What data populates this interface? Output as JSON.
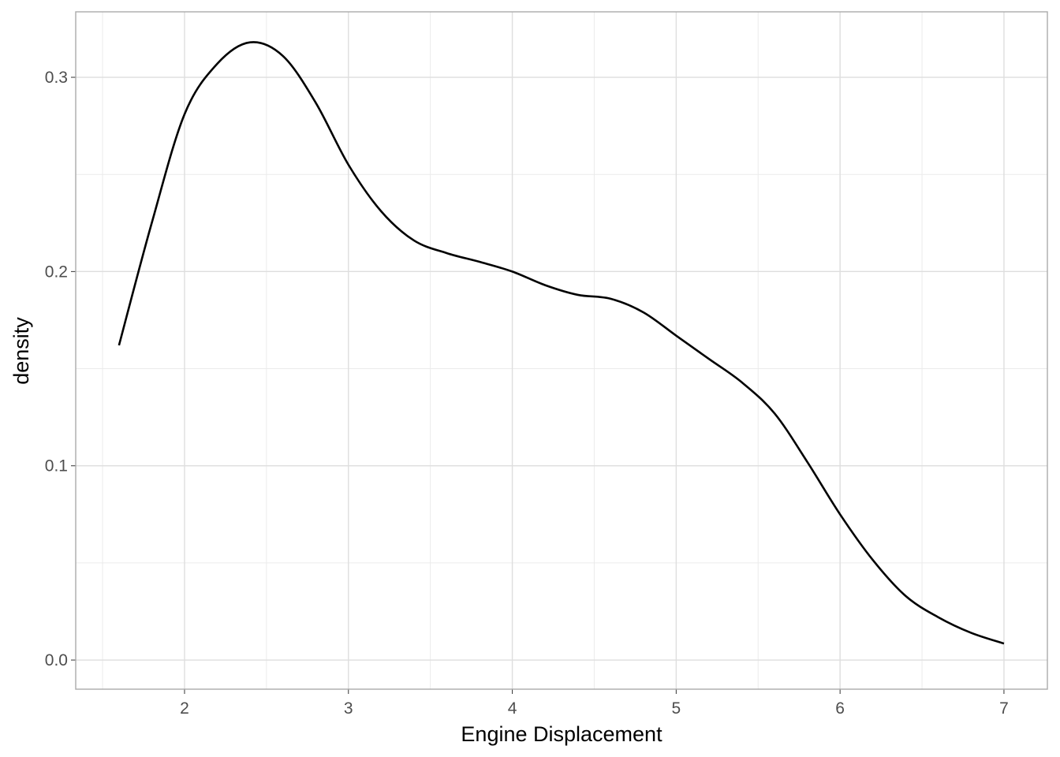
{
  "chart_data": {
    "type": "line",
    "x_label": "Engine Displacement",
    "y_label": "density",
    "x": [
      1.6,
      1.8,
      2.0,
      2.2,
      2.4,
      2.6,
      2.8,
      3.0,
      3.2,
      3.4,
      3.6,
      3.8,
      4.0,
      4.2,
      4.4,
      4.6,
      4.8,
      5.0,
      5.2,
      5.4,
      5.6,
      5.8,
      6.0,
      6.2,
      6.4,
      6.6,
      6.8,
      7.0
    ],
    "series": [
      {
        "color": "#000000",
        "values": [
          0.162,
          0.225,
          0.281,
          0.307,
          0.318,
          0.311,
          0.287,
          0.255,
          0.231,
          0.216,
          0.2095,
          0.205,
          0.2,
          0.193,
          0.188,
          0.186,
          0.179,
          0.167,
          0.155,
          0.143,
          0.127,
          0.102,
          0.075,
          0.0515,
          0.033,
          0.022,
          0.014,
          0.0085
        ]
      }
    ],
    "xlim": [
      1.336,
      7.265
    ],
    "ylim": [
      -0.015,
      0.3337
    ],
    "xticks": [
      2,
      3,
      4,
      5,
      6,
      7
    ],
    "yticks": [
      {
        "value": 0,
        "label": "0.0"
      },
      0.1,
      0.2,
      0.3
    ],
    "x_minor_grid": [
      1.5,
      2.5,
      3.5,
      4.5,
      5.5,
      6.5
    ],
    "y_minor_grid": [
      0.05,
      0.15,
      0.25
    ],
    "grid": true
  }
}
